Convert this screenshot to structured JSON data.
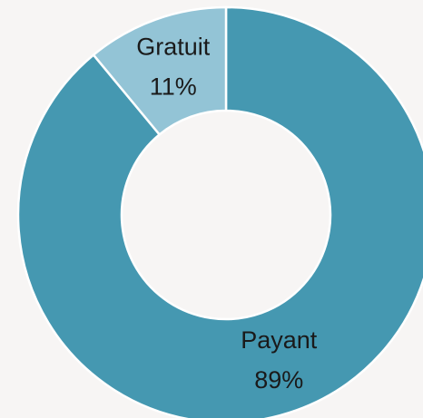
{
  "chart_data": {
    "type": "donut",
    "categories": [
      "Payant",
      "Gratuit"
    ],
    "values": [
      89,
      11
    ],
    "value_labels": [
      "89%",
      "11%"
    ],
    "colors": [
      "#4598b1",
      "#93c4d6"
    ]
  }
}
